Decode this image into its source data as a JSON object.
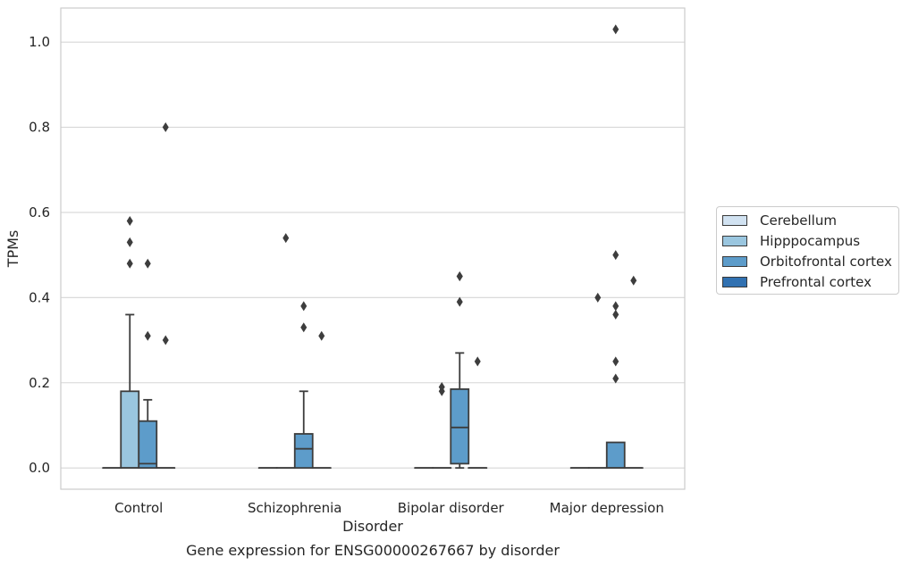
{
  "chart_data": {
    "type": "box",
    "caption": "Gene expression for ENSG00000267667 by disorder",
    "xlabel": "Disorder",
    "ylabel": "TPMs",
    "ylim": [
      -0.05,
      1.08
    ],
    "yticks": [
      0.0,
      0.2,
      0.4,
      0.6,
      0.8,
      1.0
    ],
    "categories": [
      "Control",
      "Schizophrenia",
      "Bipolar disorder",
      "Major depression"
    ],
    "grid": "horizontal",
    "legend_position": "right",
    "series": [
      {
        "name": "Cerebellum",
        "color": "#d1e2f1",
        "boxes": [
          {
            "q1": 0,
            "median": 0,
            "q3": 0,
            "whisker_low": 0,
            "whisker_high": 0,
            "outliers": []
          },
          {
            "q1": 0,
            "median": 0,
            "q3": 0,
            "whisker_low": 0,
            "whisker_high": 0,
            "outliers": []
          },
          {
            "q1": 0,
            "median": 0,
            "q3": 0,
            "whisker_low": 0,
            "whisker_high": 0,
            "outliers": []
          },
          {
            "q1": 0,
            "median": 0,
            "q3": 0,
            "whisker_low": 0,
            "whisker_high": 0,
            "outliers": []
          }
        ]
      },
      {
        "name": "Hipppocampus",
        "color": "#9ac6df",
        "boxes": [
          {
            "q1": 0,
            "median": 0,
            "q3": 0.18,
            "whisker_low": 0,
            "whisker_high": 0.36,
            "outliers": [
              0.58,
              0.53,
              0.48
            ]
          },
          {
            "q1": 0,
            "median": 0,
            "q3": 0,
            "whisker_low": 0,
            "whisker_high": 0,
            "outliers": [
              0.54
            ]
          },
          {
            "q1": 0,
            "median": 0,
            "q3": 0,
            "whisker_low": 0,
            "whisker_high": 0,
            "outliers": [
              0.19,
              0.18
            ]
          },
          {
            "q1": 0,
            "median": 0,
            "q3": 0,
            "whisker_low": 0,
            "whisker_high": 0,
            "outliers": [
              0.4
            ]
          }
        ]
      },
      {
        "name": "Orbitofrontal cortex",
        "color": "#5d9cca",
        "boxes": [
          {
            "q1": 0,
            "median": 0.01,
            "q3": 0.11,
            "whisker_low": 0,
            "whisker_high": 0.16,
            "outliers": [
              0.48,
              0.31
            ]
          },
          {
            "q1": 0,
            "median": 0.045,
            "q3": 0.08,
            "whisker_low": 0,
            "whisker_high": 0.18,
            "outliers": [
              0.38,
              0.33
            ]
          },
          {
            "q1": 0.01,
            "median": 0.095,
            "q3": 0.185,
            "whisker_low": 0,
            "whisker_high": 0.27,
            "outliers": [
              0.39,
              0.45,
              0.45
            ]
          },
          {
            "q1": 0,
            "median": 0,
            "q3": 0.06,
            "whisker_low": 0,
            "whisker_high": 0.06,
            "outliers": [
              1.03,
              0.5,
              0.36,
              0.38,
              0.25,
              0.21
            ]
          }
        ]
      },
      {
        "name": "Prefrontal cortex",
        "color": "#3171b1",
        "boxes": [
          {
            "q1": 0,
            "median": 0,
            "q3": 0,
            "whisker_low": 0,
            "whisker_high": 0,
            "outliers": [
              0.8,
              0.3
            ]
          },
          {
            "q1": 0,
            "median": 0,
            "q3": 0,
            "whisker_low": 0,
            "whisker_high": 0,
            "outliers": [
              0.31
            ]
          },
          {
            "q1": 0,
            "median": 0,
            "q3": 0,
            "whisker_low": 0,
            "whisker_high": 0,
            "outliers": [
              0.25
            ]
          },
          {
            "q1": 0,
            "median": 0,
            "q3": 0,
            "whisker_low": 0,
            "whisker_high": 0,
            "outliers": [
              0.44
            ]
          }
        ]
      }
    ]
  }
}
